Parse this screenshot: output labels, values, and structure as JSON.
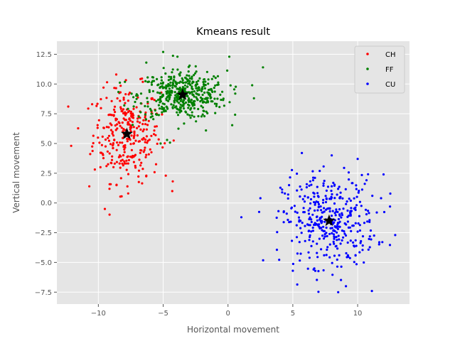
{
  "chart_data": {
    "type": "scatter",
    "title": "Kmeans result",
    "xlabel": "Horizontal movement",
    "ylabel": "Vertical movement",
    "xlim": [
      -13.2,
      14
    ],
    "ylim": [
      -8.5,
      13.6
    ],
    "x_ticks": [
      -10,
      -5,
      0,
      5,
      10
    ],
    "y_ticks": [
      -7.5,
      -5.0,
      -2.5,
      0.0,
      2.5,
      5.0,
      7.5,
      10.0,
      12.5
    ],
    "x_tick_labels": [
      "−10",
      "−5",
      "0",
      "5",
      "10"
    ],
    "y_tick_labels": [
      "−7.5",
      "−5.0",
      "−2.5",
      "0.0",
      "2.5",
      "5.0",
      "7.5",
      "10.0",
      "12.5"
    ],
    "grid": true,
    "legend_position": "top-right",
    "series": [
      {
        "name": "CH",
        "color": "#ff0000",
        "center": [
          -7.8,
          5.8
        ],
        "count": 300,
        "spread": [
          1.3,
          2.0
        ],
        "points": [
          [
            -12.1,
            4.8
          ],
          [
            -10.7,
            1.4
          ],
          [
            -9.5,
            -0.5
          ],
          [
            -9.6,
            9.7
          ],
          [
            -8.3,
            9.3
          ],
          [
            -6.0,
            4.5
          ],
          [
            -4.8,
            2.3
          ],
          [
            -4.3,
            1.0
          ],
          [
            -7.7,
            0.8
          ],
          [
            -6.3,
            2.3
          ],
          [
            -8.6,
            1.5
          ]
        ]
      },
      {
        "name": "FF",
        "color": "#008000",
        "center": [
          -3.5,
          9.1
        ],
        "count": 450,
        "spread": [
          1.7,
          1.0
        ],
        "points": [
          [
            -5.0,
            12.7
          ],
          [
            -6.3,
            11.8
          ],
          [
            -3.9,
            12.3
          ],
          [
            0.1,
            12.3
          ],
          [
            2.7,
            11.4
          ],
          [
            2.0,
            8.8
          ],
          [
            -5.2,
            5.0
          ],
          [
            -4.7,
            5.3
          ],
          [
            -1.7,
            6.1
          ]
        ]
      },
      {
        "name": "CU",
        "color": "#0000ff",
        "center": [
          7.8,
          -1.5
        ],
        "count": 380,
        "spread": [
          1.8,
          1.9
        ],
        "points": [
          [
            5.7,
            4.2
          ],
          [
            8.0,
            4.0
          ],
          [
            10.0,
            3.7
          ],
          [
            12.0,
            2.4
          ],
          [
            2.5,
            0.4
          ],
          [
            12.5,
            -0.3
          ],
          [
            12.9,
            -2.7
          ],
          [
            5.0,
            -5.7
          ],
          [
            6.6,
            -5.6
          ],
          [
            8.5,
            -7.5
          ],
          [
            11.1,
            -7.4
          ],
          [
            9.1,
            -7.0
          ]
        ]
      }
    ],
    "centroids": [
      [
        -7.8,
        5.8
      ],
      [
        -3.5,
        9.1
      ],
      [
        7.8,
        -1.5
      ]
    ],
    "centroid_color": "#000000"
  }
}
